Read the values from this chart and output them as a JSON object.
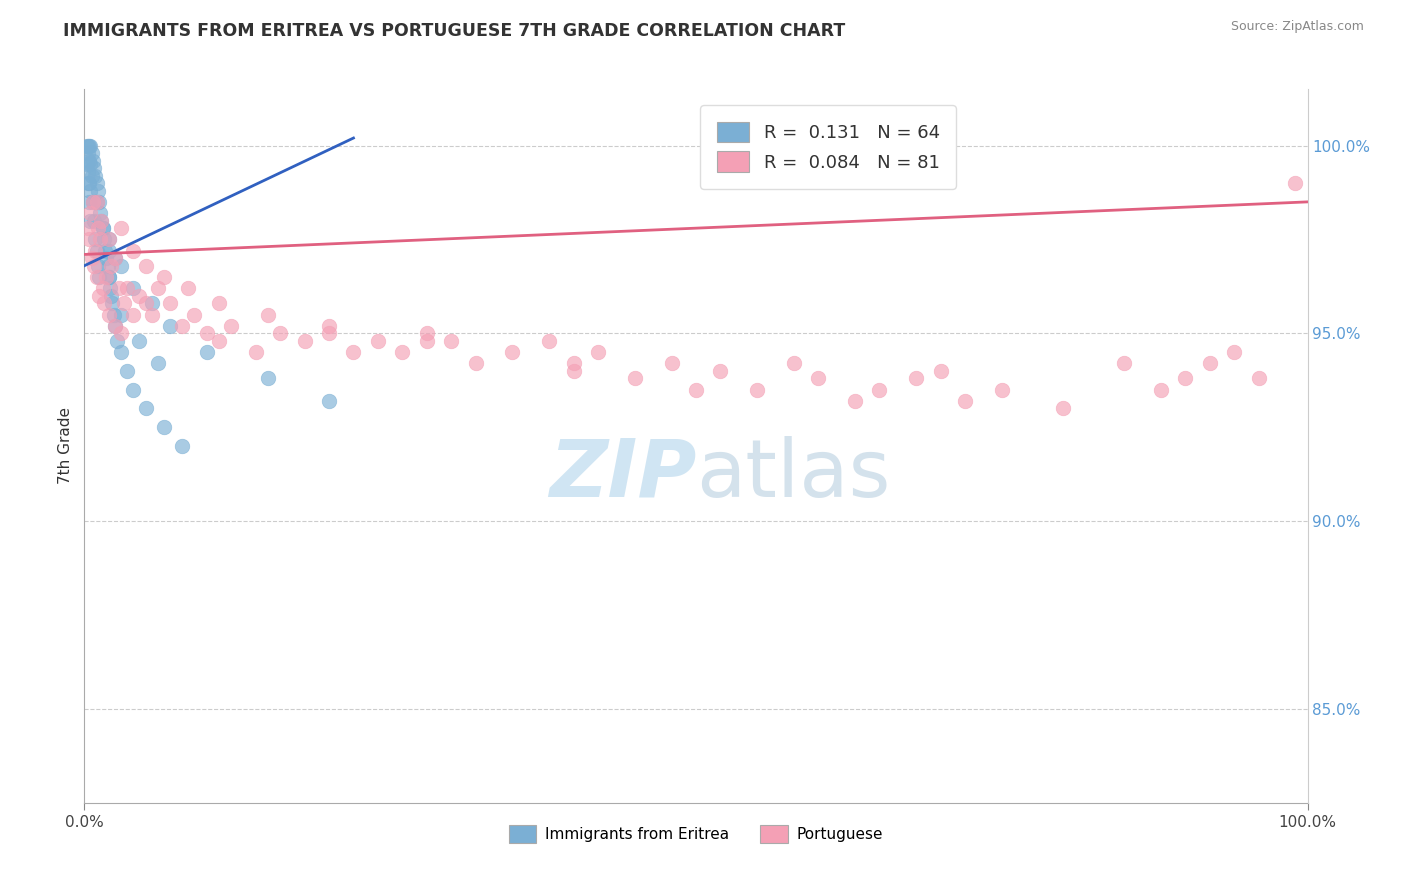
{
  "title": "IMMIGRANTS FROM ERITREA VS PORTUGUESE 7TH GRADE CORRELATION CHART",
  "source": "Source: ZipAtlas.com",
  "ylabel": "7th Grade",
  "legend_label_1": "Immigrants from Eritrea",
  "legend_label_2": "Portuguese",
  "r1": 0.131,
  "n1": 64,
  "r2": 0.084,
  "n2": 81,
  "color1": "#7bafd4",
  "color2": "#f4a0b5",
  "line_color1": "#3060c0",
  "line_color2": "#e06080",
  "xmin": 0.0,
  "xmax": 100.0,
  "ymin": 82.5,
  "ymax": 101.5,
  "right_yticks": [
    85.0,
    90.0,
    95.0,
    100.0
  ],
  "blue_line_x0": 0.0,
  "blue_line_y0": 96.8,
  "blue_line_x1": 22.0,
  "blue_line_y1": 100.2,
  "pink_line_x0": 0.0,
  "pink_line_y0": 97.1,
  "pink_line_x1": 100.0,
  "pink_line_y1": 98.5,
  "blue_x": [
    0.2,
    0.2,
    0.3,
    0.3,
    0.3,
    0.4,
    0.4,
    0.4,
    0.5,
    0.5,
    0.5,
    0.6,
    0.6,
    0.7,
    0.7,
    0.8,
    0.8,
    0.9,
    0.9,
    1.0,
    1.0,
    1.1,
    1.1,
    1.2,
    1.2,
    1.3,
    1.4,
    1.5,
    1.6,
    1.7,
    1.8,
    1.9,
    2.0,
    2.1,
    2.2,
    2.3,
    2.4,
    2.5,
    2.7,
    3.0,
    3.5,
    4.0,
    5.0,
    6.5,
    8.0,
    2.0,
    2.5,
    3.0,
    4.0,
    5.5,
    7.0,
    10.0,
    15.0,
    20.0,
    1.0,
    1.5,
    2.0,
    2.0,
    3.0,
    4.5,
    6.0,
    0.3,
    0.4,
    0.5
  ],
  "blue_y": [
    100.0,
    99.5,
    100.0,
    99.8,
    99.3,
    100.0,
    99.6,
    99.0,
    100.0,
    99.5,
    98.8,
    99.8,
    99.2,
    99.6,
    98.5,
    99.4,
    98.0,
    99.2,
    97.5,
    99.0,
    97.2,
    98.8,
    96.8,
    98.5,
    96.5,
    98.2,
    98.0,
    97.8,
    97.5,
    97.2,
    97.0,
    96.8,
    96.5,
    96.2,
    96.0,
    95.8,
    95.5,
    95.2,
    94.8,
    94.5,
    94.0,
    93.5,
    93.0,
    92.5,
    92.0,
    97.5,
    97.0,
    96.8,
    96.2,
    95.8,
    95.2,
    94.5,
    93.8,
    93.2,
    98.5,
    97.8,
    97.2,
    96.5,
    95.5,
    94.8,
    94.2,
    99.0,
    98.5,
    98.0
  ],
  "pink_x": [
    0.3,
    0.4,
    0.5,
    0.6,
    0.7,
    0.8,
    0.9,
    1.0,
    1.1,
    1.2,
    1.3,
    1.5,
    1.6,
    1.8,
    2.0,
    2.2,
    2.5,
    2.8,
    3.0,
    3.2,
    3.5,
    4.0,
    4.5,
    5.0,
    5.5,
    6.0,
    7.0,
    8.0,
    9.0,
    10.0,
    11.0,
    12.0,
    14.0,
    16.0,
    18.0,
    20.0,
    22.0,
    24.0,
    26.0,
    28.0,
    30.0,
    32.0,
    35.0,
    38.0,
    40.0,
    42.0,
    45.0,
    48.0,
    50.0,
    52.0,
    55.0,
    58.0,
    60.0,
    63.0,
    65.0,
    68.0,
    70.0,
    72.0,
    75.0,
    80.0,
    85.0,
    88.0,
    90.0,
    92.0,
    94.0,
    96.0,
    99.0,
    1.0,
    1.4,
    2.0,
    2.5,
    3.0,
    4.0,
    5.0,
    6.5,
    8.5,
    11.0,
    15.0,
    20.0,
    28.0,
    40.0
  ],
  "pink_y": [
    97.8,
    97.5,
    98.2,
    97.0,
    98.5,
    96.8,
    97.2,
    96.5,
    97.8,
    96.0,
    97.5,
    96.2,
    95.8,
    96.5,
    95.5,
    96.8,
    95.2,
    96.2,
    95.0,
    95.8,
    96.2,
    95.5,
    96.0,
    95.8,
    95.5,
    96.2,
    95.8,
    95.2,
    95.5,
    95.0,
    94.8,
    95.2,
    94.5,
    95.0,
    94.8,
    95.2,
    94.5,
    94.8,
    94.5,
    95.0,
    94.8,
    94.2,
    94.5,
    94.8,
    94.0,
    94.5,
    93.8,
    94.2,
    93.5,
    94.0,
    93.5,
    94.2,
    93.8,
    93.2,
    93.5,
    93.8,
    94.0,
    93.2,
    93.5,
    93.0,
    94.2,
    93.5,
    93.8,
    94.2,
    94.5,
    93.8,
    99.0,
    98.5,
    98.0,
    97.5,
    97.0,
    97.8,
    97.2,
    96.8,
    96.5,
    96.2,
    95.8,
    95.5,
    95.0,
    94.8,
    94.2
  ]
}
